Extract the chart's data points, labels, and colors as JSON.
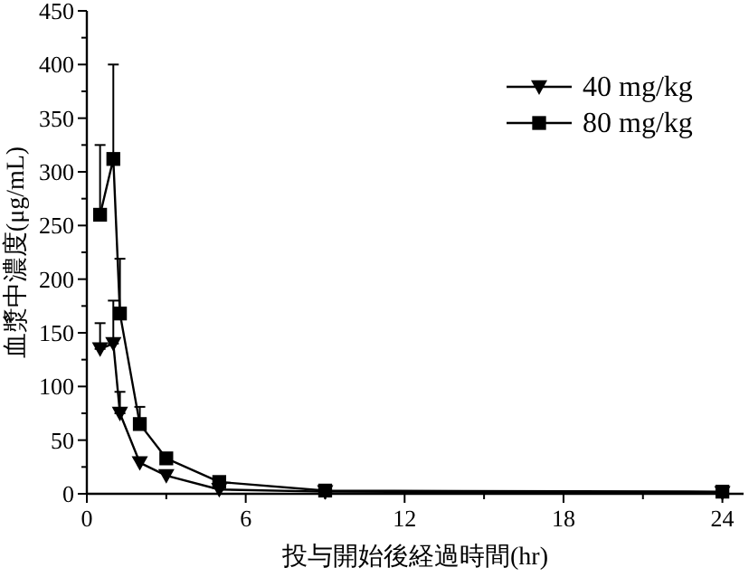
{
  "chart_data": {
    "type": "line",
    "xlabel": "投与開始後経過時間(hr)",
    "ylabel": "血漿中濃度(μg/mL)",
    "x": [
      0.5,
      1,
      1.25,
      2,
      3,
      5,
      9,
      24
    ],
    "series": [
      {
        "name": "40 mg/kg",
        "color": "#000000",
        "marker": "triangle",
        "values": [
          135,
          140,
          75,
          29,
          17,
          4,
          2,
          1
        ],
        "errors": [
          [
            135,
            159
          ],
          [
            140,
            180
          ],
          [
            75,
            95
          ],
          null,
          null,
          null,
          null,
          null
        ]
      },
      {
        "name": "80 mg/kg",
        "color": "#000000",
        "marker": "square",
        "values": [
          260,
          312,
          168,
          65,
          33,
          11,
          3,
          2
        ],
        "errors": [
          [
            260,
            325
          ],
          [
            312,
            400
          ],
          [
            168,
            219
          ],
          [
            65,
            81
          ],
          null,
          null,
          null,
          null
        ]
      }
    ],
    "xlim": [
      0,
      24.8
    ],
    "ylim": [
      0,
      450
    ],
    "xticks": [
      0,
      {
        "value": 3,
        "label": null
      },
      6,
      {
        "value": 9,
        "label": null
      },
      12,
      {
        "value": 15,
        "label": null
      },
      18,
      {
        "value": 21,
        "label": null
      },
      24
    ],
    "yticks": [
      0,
      {
        "value": 25,
        "label": null
      },
      50,
      {
        "value": 75,
        "label": null
      },
      100,
      {
        "value": 125,
        "label": null
      },
      150,
      {
        "value": 175,
        "label": null
      },
      200,
      {
        "value": 225,
        "label": null
      },
      250,
      {
        "value": 275,
        "label": null
      },
      300,
      {
        "value": 325,
        "label": null
      },
      350,
      {
        "value": 375,
        "label": null
      },
      400,
      {
        "value": 425,
        "label": null
      },
      450
    ],
    "legend": "top right",
    "grid": false,
    "line_style": "solid"
  }
}
